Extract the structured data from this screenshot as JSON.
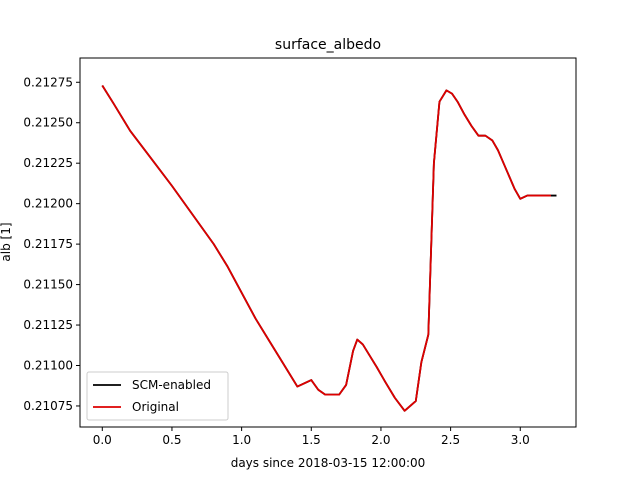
{
  "chart_data": {
    "type": "line",
    "title": "surface_albedo",
    "xlabel": "days since 2018-03-15 12:00:00",
    "ylabel": "alb [1]",
    "xlim": [
      -0.16,
      3.4
    ],
    "ylim": [
      0.21062,
      0.2129
    ],
    "xticks": [
      0.0,
      0.5,
      1.0,
      1.5,
      2.0,
      2.5,
      3.0
    ],
    "xtick_labels": [
      "0.0",
      "0.5",
      "1.0",
      "1.5",
      "2.0",
      "2.5",
      "3.0"
    ],
    "yticks": [
      0.21075,
      0.211,
      0.21125,
      0.2115,
      0.21175,
      0.212,
      0.21225,
      0.2125,
      0.21275
    ],
    "ytick_labels": [
      "0.21075",
      "0.21100",
      "0.21125",
      "0.21150",
      "0.21175",
      "0.21200",
      "0.21225",
      "0.21250",
      "0.21275"
    ],
    "grid": false,
    "legend_position": "lower-left",
    "series": [
      {
        "name": "SCM-enabled",
        "color": "#000000",
        "x": [
          0.0,
          0.08,
          0.2,
          0.35,
          0.5,
          0.65,
          0.8,
          0.9,
          1.0,
          1.1,
          1.2,
          1.3,
          1.4,
          1.5,
          1.55,
          1.6,
          1.65,
          1.7,
          1.75,
          1.8,
          1.83,
          1.87,
          1.92,
          1.97,
          2.03,
          2.1,
          2.17,
          2.25,
          2.29,
          2.34,
          2.38,
          2.42,
          2.47,
          2.51,
          2.55,
          2.6,
          2.65,
          2.7,
          2.75,
          2.8,
          2.84,
          2.88,
          2.92,
          2.96,
          3.0,
          3.05,
          3.1,
          3.15,
          3.19,
          3.22,
          3.26
        ],
        "y": [
          0.21273,
          0.21262,
          0.21245,
          0.21228,
          0.21211,
          0.21193,
          0.21175,
          0.21161,
          0.21145,
          0.21129,
          0.21115,
          0.21101,
          0.21087,
          0.21091,
          0.21085,
          0.21082,
          0.21082,
          0.21082,
          0.21088,
          0.21109,
          0.21116,
          0.21113,
          0.21106,
          0.21099,
          0.2109,
          0.2108,
          0.21072,
          0.21078,
          0.21102,
          0.21119,
          0.21225,
          0.21263,
          0.2127,
          0.21268,
          0.21263,
          0.21255,
          0.21248,
          0.21242,
          0.21242,
          0.21239,
          0.21233,
          0.21225,
          0.21217,
          0.21209,
          0.21203,
          0.21205,
          0.21205,
          0.21205,
          0.21205,
          0.21205,
          0.21205
        ]
      },
      {
        "name": "Original",
        "color": "#dd0000",
        "x": [
          0.0,
          0.08,
          0.2,
          0.35,
          0.5,
          0.65,
          0.8,
          0.9,
          1.0,
          1.1,
          1.2,
          1.3,
          1.4,
          1.5,
          1.55,
          1.6,
          1.65,
          1.7,
          1.75,
          1.8,
          1.83,
          1.87,
          1.92,
          1.97,
          2.03,
          2.1,
          2.17,
          2.25,
          2.29,
          2.34,
          2.38,
          2.42,
          2.47,
          2.51,
          2.55,
          2.6,
          2.65,
          2.7,
          2.75,
          2.8,
          2.84,
          2.88,
          2.92,
          2.96,
          3.0,
          3.05,
          3.1,
          3.15,
          3.19,
          3.22
        ],
        "y": [
          0.21273,
          0.21262,
          0.21245,
          0.21228,
          0.21211,
          0.21193,
          0.21175,
          0.21161,
          0.21145,
          0.21129,
          0.21115,
          0.21101,
          0.21087,
          0.21091,
          0.21085,
          0.21082,
          0.21082,
          0.21082,
          0.21088,
          0.21109,
          0.21116,
          0.21113,
          0.21106,
          0.21099,
          0.2109,
          0.2108,
          0.21072,
          0.21078,
          0.21102,
          0.21119,
          0.21225,
          0.21263,
          0.2127,
          0.21268,
          0.21263,
          0.21255,
          0.21248,
          0.21242,
          0.21242,
          0.21239,
          0.21233,
          0.21225,
          0.21217,
          0.21209,
          0.21203,
          0.21205,
          0.21205,
          0.21205,
          0.21205,
          0.21205
        ]
      }
    ]
  }
}
